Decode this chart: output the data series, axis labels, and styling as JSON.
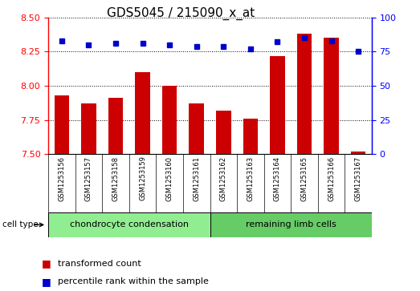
{
  "title": "GDS5045 / 215090_x_at",
  "samples": [
    "GSM1253156",
    "GSM1253157",
    "GSM1253158",
    "GSM1253159",
    "GSM1253160",
    "GSM1253161",
    "GSM1253162",
    "GSM1253163",
    "GSM1253164",
    "GSM1253165",
    "GSM1253166",
    "GSM1253167"
  ],
  "transformed_count": [
    7.93,
    7.87,
    7.91,
    8.1,
    8.0,
    7.87,
    7.82,
    7.76,
    8.22,
    8.38,
    8.35,
    7.52
  ],
  "percentile_rank": [
    83,
    80,
    81,
    81,
    80,
    79,
    79,
    77,
    82,
    85,
    83,
    75
  ],
  "ylim_left": [
    7.5,
    8.5
  ],
  "ylim_right": [
    0,
    100
  ],
  "yticks_left": [
    7.5,
    7.75,
    8.0,
    8.25,
    8.5
  ],
  "yticks_right": [
    0,
    25,
    50,
    75,
    100
  ],
  "bar_color": "#cc0000",
  "dot_color": "#0000cc",
  "bar_bottom": 7.5,
  "cell_types": [
    {
      "label": "chondrocyte condensation",
      "count": 6,
      "color": "#90ee90"
    },
    {
      "label": "remaining limb cells",
      "count": 6,
      "color": "#66cc66"
    }
  ],
  "sample_label_bg": "#c8c8c8",
  "legend_bar_label": "transformed count",
  "legend_dot_label": "percentile rank within the sample",
  "cell_type_label": "cell type",
  "background_color": "#ffffff",
  "title_fontsize": 11,
  "tick_fontsize": 8,
  "sample_fontsize": 6,
  "legend_fontsize": 8,
  "celltype_fontsize": 8
}
